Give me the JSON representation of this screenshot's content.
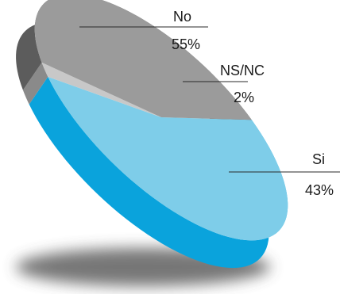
{
  "chart_data": {
    "type": "pie",
    "title": "",
    "slices": [
      {
        "label": "No",
        "value": 55,
        "value_label": "55%",
        "color": "#7ecde9",
        "side_color": "#0aa3dc"
      },
      {
        "label": "NS/NC",
        "value": 2,
        "value_label": "2%",
        "color": "#c8c8c8",
        "side_color": "#8a8a8a"
      },
      {
        "label": "Si",
        "value": 43,
        "value_label": "43%",
        "color": "#9b9b9b",
        "side_color": "#5c5c5c"
      }
    ],
    "style": "3d-tilted",
    "legend": "none"
  }
}
